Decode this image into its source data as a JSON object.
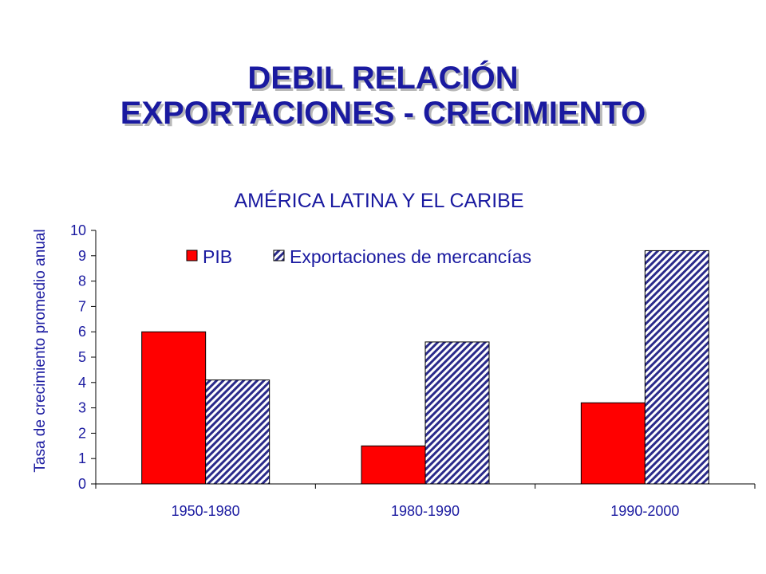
{
  "slide": {
    "title_line1": "DEBIL RELACIÓN",
    "title_line2": "EXPORTACIONES - CRECIMIENTO"
  },
  "colors": {
    "title": "#1a1aa0",
    "text": "#1a1aa0",
    "pib": "#ff0000",
    "exports_hatch": "#2a2a8a"
  },
  "chart_data": {
    "type": "bar",
    "title": "AMÉRICA LATINA Y EL CARIBE",
    "ylabel": "Tasa de crecimiento promedio anual",
    "xlabel": "",
    "categories": [
      "1950-1980",
      "1980-1990",
      "1990-2000"
    ],
    "series": [
      {
        "name": "PIB",
        "values": [
          6.0,
          1.5,
          3.2
        ],
        "fill": "solid-red"
      },
      {
        "name": "Exportaciones de mercancías",
        "values": [
          4.1,
          5.6,
          9.2
        ],
        "fill": "diagonal-hatch"
      }
    ],
    "ylim": [
      0,
      10
    ],
    "yticks": [
      0,
      1,
      2,
      3,
      4,
      5,
      6,
      7,
      8,
      9,
      10
    ],
    "grid": false,
    "legend_position": "top"
  }
}
